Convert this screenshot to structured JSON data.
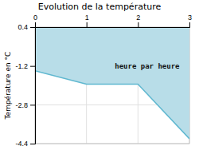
{
  "chart_data": {
    "type": "area",
    "title": "Evolution de la température",
    "y_label": "Température en °C",
    "x": [
      0,
      1,
      2,
      3
    ],
    "series": [
      {
        "values": [
          -1.4,
          -1.95,
          -1.95,
          -4.2
        ],
        "color": "#60b8d0"
      }
    ],
    "color": "#b8dde8",
    "xlim": [
      0,
      3
    ],
    "xticks": [
      0,
      1,
      2,
      3
    ],
    "ylim": [
      -4.4,
      0.4
    ],
    "yticks": [
      0.4,
      -1.2,
      -2.8,
      -4.4
    ],
    "grid": true,
    "annotations": [
      {
        "text": "heure par heure",
        "x": 1.55,
        "y": -1.1
      }
    ]
  }
}
